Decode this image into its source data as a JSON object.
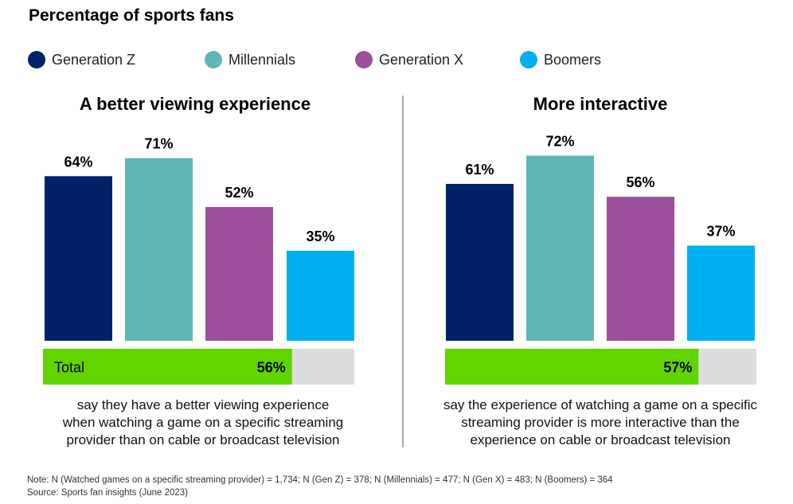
{
  "title": "Percentage of sports fans",
  "legend": [
    {
      "label": "Generation Z",
      "color": "#012169"
    },
    {
      "label": "Millennials",
      "color": "#62B5B5"
    },
    {
      "label": "Generation X",
      "color": "#9B4F9B"
    },
    {
      "label": "Boomers",
      "color": "#00B0F0"
    }
  ],
  "chart_data": [
    {
      "type": "bar",
      "title": "A better viewing experience",
      "categories": [
        "Generation Z",
        "Millennials",
        "Generation X",
        "Boomers"
      ],
      "values": [
        64,
        71,
        52,
        35
      ],
      "value_labels": [
        "64%",
        "71%",
        "52%",
        "35%"
      ],
      "ylim": [
        0,
        100
      ],
      "total": {
        "label": "Total",
        "value": 56,
        "value_label": "56%"
      },
      "caption": [
        "say they have a better viewing experience",
        "when watching a game on a specific streaming",
        "provider than on cable or broadcast television"
      ]
    },
    {
      "type": "bar",
      "title": "More interactive",
      "categories": [
        "Generation Z",
        "Millennials",
        "Generation X",
        "Boomers"
      ],
      "values": [
        61,
        72,
        56,
        37
      ],
      "value_labels": [
        "61%",
        "72%",
        "56%",
        "37%"
      ],
      "ylim": [
        0,
        100
      ],
      "total": {
        "label": "",
        "value": 57,
        "value_label": "57%"
      },
      "caption": [
        "say the experience of watching a game on a specific",
        "streaming provider is more interactive than the",
        "experience on cable or broadcast television"
      ]
    }
  ],
  "total_bar_color": "#62D400",
  "total_track_color": "#DDDDDD",
  "note": "Note: N (Watched games on a specific streaming provider) = 1,734; N (Gen Z) = 378; N (Millennials) = 477; N (Gen X) = 483; N (Boomers) = 364",
  "source": "Source: Sports fan insights (June 2023)"
}
